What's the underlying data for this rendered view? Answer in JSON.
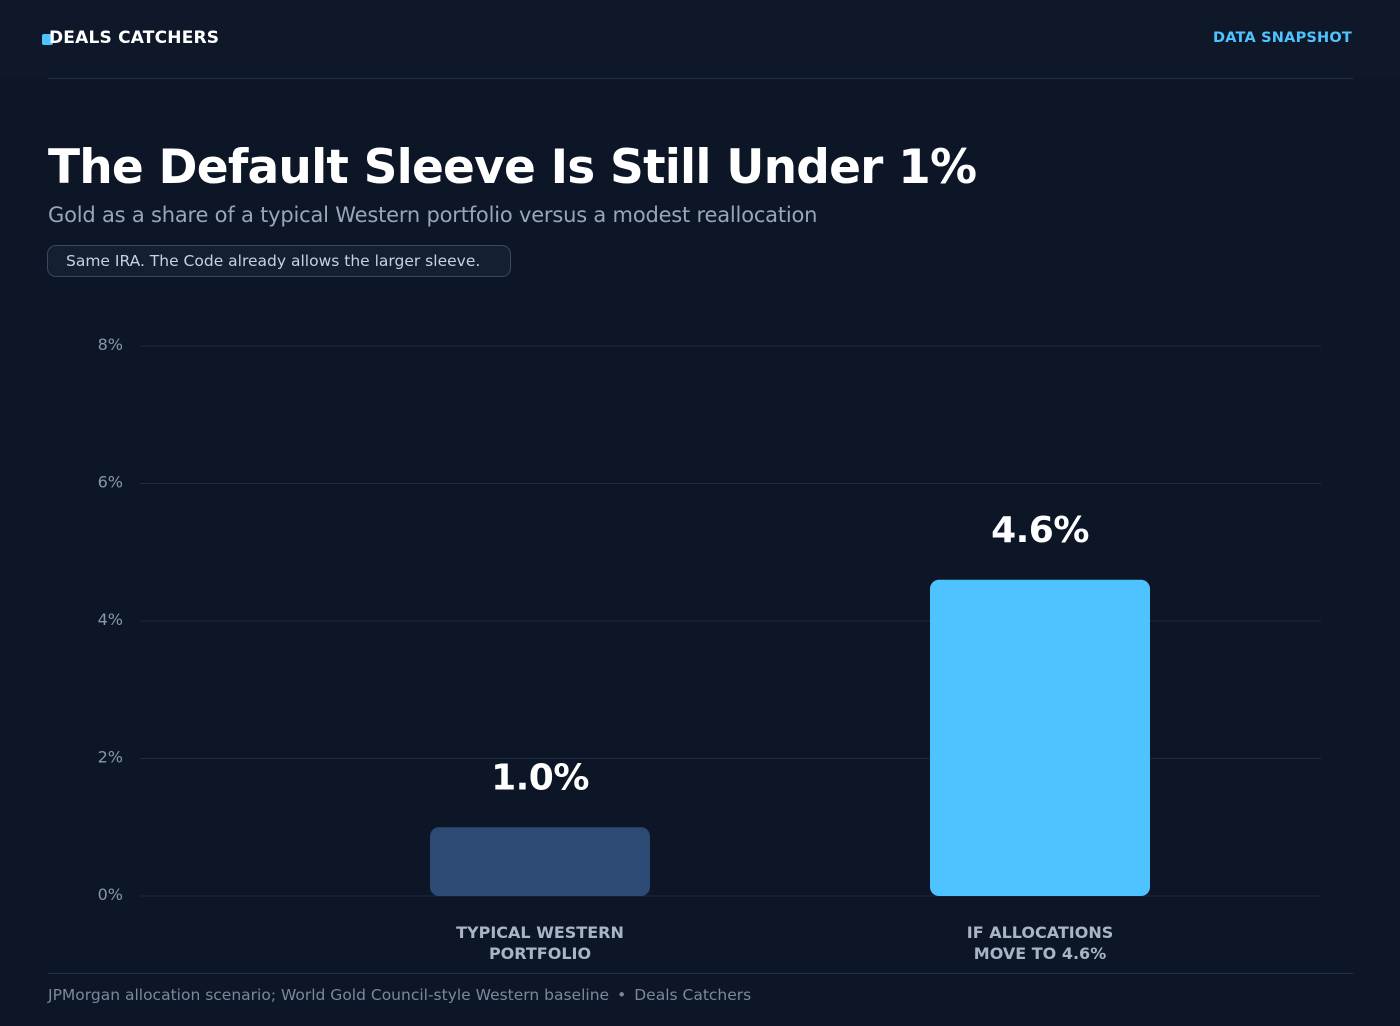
{
  "header": {
    "brand": "DEALS CATCHERS",
    "nav_link": "DATA SNAPSHOT"
  },
  "title": "The Default Sleeve Is Still Under 1%",
  "subtitle": "Gold as a share of a typical Western portfolio versus a modest reallocation",
  "callout": "Same IRA. The Code already allows the larger sleeve.",
  "chart_data": {
    "type": "bar",
    "title": "The Default Sleeve Is Still Under 1%",
    "subtitle": "Gold as a share of a typical Western portfolio versus a modest reallocation",
    "categories": [
      "TYPICAL WESTERN PORTFOLIO",
      "IF ALLOCATIONS MOVE TO 4.6%"
    ],
    "category_lines": [
      [
        "TYPICAL WESTERN",
        "PORTFOLIO"
      ],
      [
        "IF ALLOCATIONS",
        "MOVE TO 4.6%"
      ]
    ],
    "values": [
      1.0,
      4.6
    ],
    "value_labels": [
      "1.0%",
      "4.6%"
    ],
    "bar_colors": [
      "#2d4a74",
      "#4fc3ff"
    ],
    "ylim": [
      0,
      8
    ],
    "yticks": [
      0,
      2,
      4,
      6,
      8
    ],
    "ytick_labels": [
      "0%",
      "2%",
      "4%",
      "6%",
      "8%"
    ],
    "xlabel": "",
    "ylabel": "",
    "grid": true,
    "legend": "none"
  },
  "footer": {
    "source": "JPMorgan allocation scenario; World Gold Council-style Western baseline",
    "separator": "•",
    "brand": "Deals Catchers"
  },
  "colors": {
    "background": "#0c1626",
    "accent": "#4fc3ff",
    "muted_bar": "#2d4a74",
    "gridline": "#1f2b3e"
  }
}
